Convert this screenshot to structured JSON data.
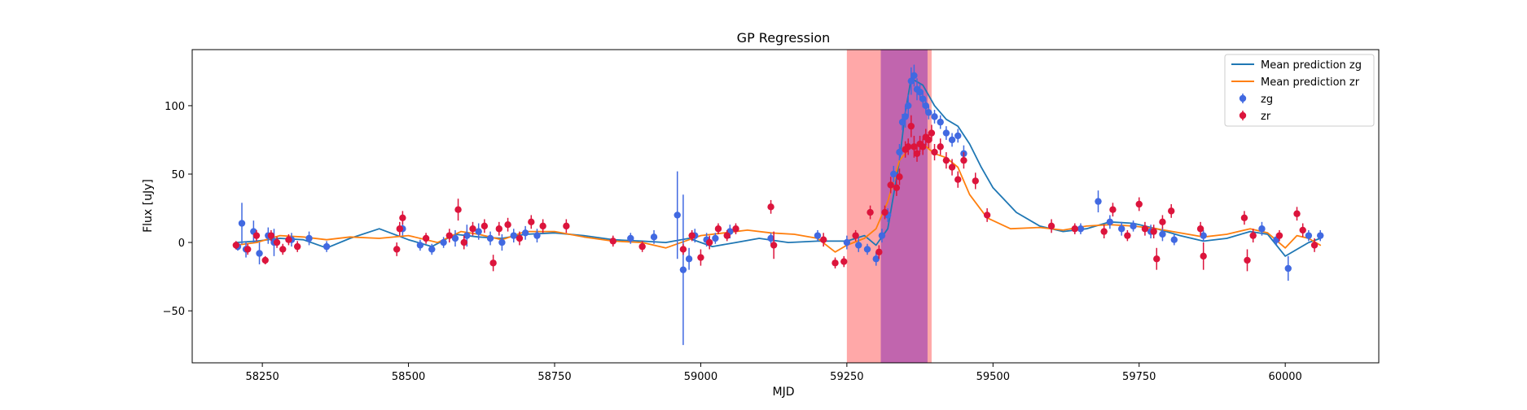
{
  "chart_data": {
    "type": "line",
    "title": "GP Regression",
    "xlabel": "MJD",
    "ylabel": "Flux [uJy]",
    "xlim": [
      58130,
      60160
    ],
    "ylim": [
      -88,
      141
    ],
    "x_ticks": [
      58250,
      58500,
      58750,
      59000,
      59250,
      59500,
      59750,
      60000
    ],
    "y_ticks": [
      -50,
      0,
      50,
      100
    ],
    "x_tick_labels": [
      "58250",
      "58500",
      "58750",
      "59000",
      "59250",
      "59500",
      "59750",
      "60000"
    ],
    "y_tick_labels": [
      "−50",
      "0",
      "50",
      "100"
    ],
    "grid": false,
    "legend_position": "upper right",
    "shaded_regions": [
      {
        "x_start": 59250,
        "x_end": 59395,
        "color": "#ff9999",
        "opacity": 0.85
      },
      {
        "x_start": 59308,
        "x_end": 59388,
        "color": "#a040b0",
        "opacity": 0.65
      }
    ],
    "series": [
      {
        "name": "Mean prediction zg",
        "kind": "line",
        "color": "#1f77b4",
        "x": [
          58205,
          58240,
          58280,
          58320,
          58360,
          58400,
          58450,
          58500,
          58540,
          58580,
          58620,
          58660,
          58700,
          58750,
          58800,
          58850,
          58900,
          58940,
          58980,
          59020,
          59060,
          59100,
          59150,
          59200,
          59250,
          59280,
          59300,
          59320,
          59340,
          59350,
          59360,
          59380,
          59400,
          59420,
          59440,
          59460,
          59480,
          59500,
          59540,
          59580,
          59620,
          59660,
          59700,
          59740,
          59780,
          59820,
          59860,
          59900,
          59940,
          59970,
          60000,
          60020,
          60040,
          60060
        ],
        "y": [
          0,
          1,
          3,
          2,
          -4,
          3,
          10,
          2,
          -3,
          6,
          4,
          3,
          6,
          7,
          5,
          2,
          1,
          0,
          3,
          -3,
          0,
          3,
          0,
          1,
          1,
          5,
          -2,
          10,
          60,
          95,
          120,
          115,
          100,
          90,
          85,
          72,
          55,
          40,
          22,
          12,
          8,
          10,
          15,
          14,
          10,
          5,
          1,
          3,
          8,
          6,
          -10,
          -5,
          0,
          3
        ]
      },
      {
        "name": "Mean prediction zr",
        "kind": "line",
        "color": "#ff7f0e",
        "x": [
          58205,
          58240,
          58280,
          58320,
          58360,
          58400,
          58450,
          58500,
          58550,
          58590,
          58620,
          58660,
          58700,
          58750,
          58800,
          58850,
          58900,
          58940,
          58980,
          59000,
          59040,
          59080,
          59120,
          59160,
          59200,
          59230,
          59250,
          59280,
          59300,
          59320,
          59340,
          59360,
          59380,
          59400,
          59420,
          59440,
          59460,
          59490,
          59530,
          59580,
          59620,
          59660,
          59700,
          59740,
          59780,
          59820,
          59860,
          59900,
          59940,
          59970,
          60000,
          60020,
          60040,
          60060
        ],
        "y": [
          -2,
          0,
          5,
          4,
          2,
          4,
          3,
          5,
          0,
          8,
          6,
          2,
          8,
          8,
          4,
          1,
          0,
          -4,
          2,
          5,
          7,
          9,
          7,
          6,
          3,
          -7,
          -2,
          3,
          10,
          30,
          60,
          70,
          72,
          65,
          62,
          55,
          35,
          18,
          10,
          11,
          9,
          12,
          13,
          12,
          10,
          7,
          4,
          6,
          10,
          7,
          -4,
          5,
          3,
          -2
        ]
      },
      {
        "name": "zg",
        "kind": "errorbar",
        "color": "#4169e1",
        "x": [
          58208,
          58215,
          58222,
          58235,
          58245,
          58260,
          58270,
          58300,
          58330,
          58360,
          58490,
          58520,
          58540,
          58560,
          58580,
          58600,
          58620,
          58640,
          58660,
          58680,
          58700,
          58720,
          58880,
          58920,
          58960,
          58970,
          58980,
          58990,
          59010,
          59025,
          59050,
          59120,
          59200,
          59250,
          59270,
          59285,
          59300,
          59310,
          59320,
          59330,
          59340,
          59345,
          59350,
          59355,
          59360,
          59365,
          59370,
          59375,
          59380,
          59385,
          59390,
          59400,
          59410,
          59420,
          59430,
          59440,
          59450,
          59650,
          59680,
          59700,
          59720,
          59740,
          59770,
          59790,
          59810,
          59860,
          59960,
          59985,
          60005,
          60040,
          60060
        ],
        "y": [
          -3,
          14,
          -5,
          8,
          -8,
          5,
          0,
          2,
          3,
          -3,
          10,
          -2,
          -5,
          0,
          3,
          5,
          8,
          3,
          0,
          5,
          7,
          5,
          3,
          4,
          20,
          -20,
          -12,
          5,
          2,
          3,
          8,
          3,
          5,
          0,
          -2,
          -5,
          -12,
          5,
          20,
          50,
          66,
          88,
          92,
          100,
          118,
          122,
          112,
          110,
          105,
          100,
          95,
          92,
          88,
          80,
          75,
          78,
          65,
          10,
          30,
          15,
          10,
          12,
          8,
          6,
          2,
          5,
          10,
          2,
          -19,
          5,
          5
        ],
        "yerr": [
          3,
          15,
          6,
          8,
          8,
          6,
          10,
          5,
          5,
          4,
          5,
          4,
          4,
          4,
          6,
          8,
          6,
          5,
          6,
          5,
          5,
          5,
          4,
          5,
          32,
          55,
          8,
          5,
          5,
          4,
          5,
          4,
          4,
          5,
          5,
          4,
          5,
          5,
          5,
          6,
          6,
          6,
          8,
          8,
          10,
          8,
          8,
          6,
          6,
          5,
          5,
          5,
          5,
          5,
          5,
          5,
          6,
          4,
          8,
          5,
          5,
          4,
          5,
          5,
          4,
          4,
          5,
          4,
          9,
          4,
          4
        ]
      },
      {
        "name": "zr",
        "kind": "errorbar",
        "color": "#dc143c",
        "x": [
          58205,
          58225,
          58240,
          58255,
          58265,
          58275,
          58285,
          58295,
          58310,
          58480,
          58485,
          58490,
          58530,
          58570,
          58585,
          58595,
          58610,
          58630,
          58645,
          58655,
          58670,
          58690,
          58710,
          58730,
          58770,
          58850,
          58900,
          58970,
          58985,
          59000,
          59015,
          59030,
          59045,
          59060,
          59120,
          59125,
          59210,
          59230,
          59245,
          59265,
          59290,
          59305,
          59315,
          59325,
          59335,
          59340,
          59350,
          59355,
          59360,
          59365,
          59370,
          59375,
          59380,
          59385,
          59390,
          59395,
          59400,
          59410,
          59420,
          59430,
          59440,
          59450,
          59470,
          59490,
          59600,
          59640,
          59690,
          59705,
          59730,
          59750,
          59760,
          59775,
          59780,
          59790,
          59805,
          59855,
          59860,
          59930,
          59935,
          59945,
          59990,
          60020,
          60030,
          60050
        ],
        "y": [
          -2,
          -5,
          5,
          -13,
          5,
          0,
          -5,
          2,
          -3,
          -5,
          10,
          18,
          3,
          5,
          24,
          0,
          10,
          12,
          -15,
          10,
          13,
          3,
          15,
          12,
          12,
          1,
          -3,
          -5,
          5,
          -11,
          0,
          10,
          5,
          10,
          26,
          -2,
          2,
          -15,
          -14,
          5,
          22,
          -7,
          22,
          42,
          40,
          48,
          68,
          70,
          85,
          70,
          65,
          72,
          70,
          77,
          75,
          80,
          66,
          70,
          60,
          55,
          46,
          60,
          45,
          20,
          12,
          10,
          8,
          24,
          5,
          28,
          10,
          8,
          -12,
          15,
          23,
          10,
          -10,
          18,
          -13,
          5,
          5,
          21,
          9,
          -2
        ],
        "yerr": [
          3,
          4,
          4,
          3,
          4,
          4,
          4,
          4,
          4,
          5,
          5,
          5,
          4,
          5,
          8,
          5,
          5,
          5,
          6,
          5,
          5,
          5,
          5,
          5,
          5,
          4,
          4,
          4,
          4,
          6,
          5,
          4,
          4,
          4,
          5,
          10,
          5,
          4,
          4,
          4,
          5,
          5,
          5,
          6,
          6,
          6,
          6,
          6,
          8,
          8,
          6,
          6,
          6,
          6,
          6,
          6,
          6,
          6,
          6,
          6,
          6,
          6,
          6,
          5,
          5,
          4,
          5,
          5,
          4,
          5,
          5,
          5,
          8,
          5,
          5,
          5,
          10,
          5,
          8,
          5,
          4,
          5,
          5,
          5
        ]
      }
    ]
  }
}
